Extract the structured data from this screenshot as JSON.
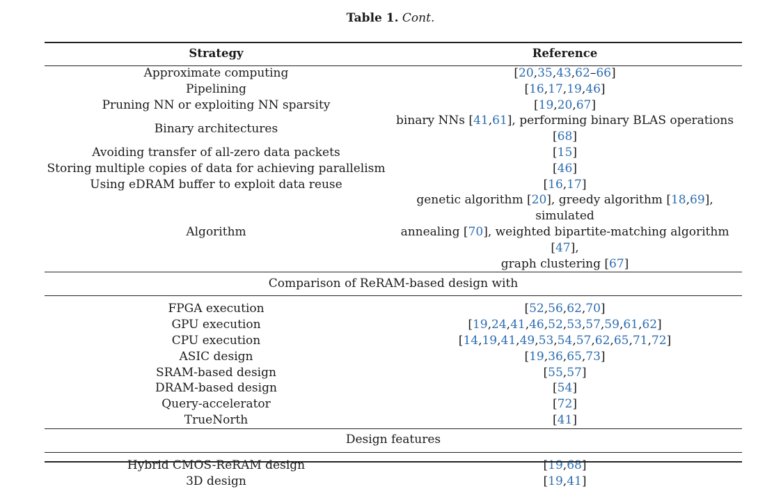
{
  "caption": {
    "label": "Table 1.",
    "continued": "Cont."
  },
  "table": {
    "headers": [
      "Strategy",
      "Reference"
    ],
    "groups": [
      {
        "rows": [
          {
            "strategy": "Approximate computing",
            "reference": [
              {
                "t": "[",
                "l": false
              },
              {
                "t": "20",
                "l": true
              },
              {
                "t": ",",
                "l": false
              },
              {
                "t": "35",
                "l": true
              },
              {
                "t": ",",
                "l": false
              },
              {
                "t": "43",
                "l": true
              },
              {
                "t": ",",
                "l": false
              },
              {
                "t": "62",
                "l": true
              },
              {
                "t": "–",
                "l": false
              },
              {
                "t": "66",
                "l": true
              },
              {
                "t": "]",
                "l": false
              }
            ]
          },
          {
            "strategy": "Pipelining",
            "reference": [
              {
                "t": "[",
                "l": false
              },
              {
                "t": "16",
                "l": true
              },
              {
                "t": ",",
                "l": false
              },
              {
                "t": "17",
                "l": true
              },
              {
                "t": ",",
                "l": false
              },
              {
                "t": "19",
                "l": true
              },
              {
                "t": ",",
                "l": false
              },
              {
                "t": "46",
                "l": true
              },
              {
                "t": "]",
                "l": false
              }
            ]
          },
          {
            "strategy": "Pruning NN or exploiting NN sparsity",
            "reference": [
              {
                "t": "[",
                "l": false
              },
              {
                "t": "19",
                "l": true
              },
              {
                "t": ",",
                "l": false
              },
              {
                "t": "20",
                "l": true
              },
              {
                "t": ",",
                "l": false
              },
              {
                "t": "67",
                "l": true
              },
              {
                "t": "]",
                "l": false
              }
            ]
          },
          {
            "strategy": "Binary architectures",
            "reference": [
              {
                "t": "binary NNs [",
                "l": false
              },
              {
                "t": "41",
                "l": true
              },
              {
                "t": ",",
                "l": false
              },
              {
                "t": "61",
                "l": true
              },
              {
                "t": "], performing binary BLAS operations [",
                "l": false
              },
              {
                "t": "68",
                "l": true
              },
              {
                "t": "]",
                "l": false
              }
            ]
          },
          {
            "strategy": "Avoiding transfer of all-zero data packets",
            "reference": [
              {
                "t": "[",
                "l": false
              },
              {
                "t": "15",
                "l": true
              },
              {
                "t": "]",
                "l": false
              }
            ]
          },
          {
            "strategy": "Storing multiple copies of data for achieving parallelism",
            "reference": [
              {
                "t": "[",
                "l": false
              },
              {
                "t": "46",
                "l": true
              },
              {
                "t": "]",
                "l": false
              }
            ]
          },
          {
            "strategy": "Using eDRAM buffer to exploit data reuse",
            "reference": [
              {
                "t": "[",
                "l": false
              },
              {
                "t": "16",
                "l": true
              },
              {
                "t": ",",
                "l": false
              },
              {
                "t": "17",
                "l": true
              },
              {
                "t": "]",
                "l": false
              }
            ]
          },
          {
            "strategy": "Algorithm",
            "reference_lines": [
              [
                {
                  "t": "genetic algorithm [",
                  "l": false
                },
                {
                  "t": "20",
                  "l": true
                },
                {
                  "t": "], greedy algorithm [",
                  "l": false
                },
                {
                  "t": "18",
                  "l": true
                },
                {
                  "t": ",",
                  "l": false
                },
                {
                  "t": "69",
                  "l": true
                },
                {
                  "t": "], simulated",
                  "l": false
                }
              ],
              [
                {
                  "t": "annealing [",
                  "l": false
                },
                {
                  "t": "70",
                  "l": true
                },
                {
                  "t": "], weighted bipartite-matching algorithm [",
                  "l": false
                },
                {
                  "t": "47",
                  "l": true
                },
                {
                  "t": "],",
                  "l": false
                }
              ],
              [
                {
                  "t": "graph clustering [",
                  "l": false
                },
                {
                  "t": "67",
                  "l": true
                },
                {
                  "t": "]",
                  "l": false
                }
              ]
            ]
          }
        ]
      },
      {
        "title": "Comparison of ReRAM-based design with",
        "rows": [
          {
            "strategy": "FPGA execution",
            "reference": [
              {
                "t": "[",
                "l": false
              },
              {
                "t": "52",
                "l": true
              },
              {
                "t": ",",
                "l": false
              },
              {
                "t": "56",
                "l": true
              },
              {
                "t": ",",
                "l": false
              },
              {
                "t": "62",
                "l": true
              },
              {
                "t": ",",
                "l": false
              },
              {
                "t": "70",
                "l": true
              },
              {
                "t": "]",
                "l": false
              }
            ]
          },
          {
            "strategy": "GPU execution",
            "reference": [
              {
                "t": "[",
                "l": false
              },
              {
                "t": "19",
                "l": true
              },
              {
                "t": ",",
                "l": false
              },
              {
                "t": "24",
                "l": true
              },
              {
                "t": ",",
                "l": false
              },
              {
                "t": "41",
                "l": true
              },
              {
                "t": ",",
                "l": false
              },
              {
                "t": "46",
                "l": true
              },
              {
                "t": ",",
                "l": false
              },
              {
                "t": "52",
                "l": true
              },
              {
                "t": ",",
                "l": false
              },
              {
                "t": "53",
                "l": true
              },
              {
                "t": ",",
                "l": false
              },
              {
                "t": "57",
                "l": true
              },
              {
                "t": ",",
                "l": false
              },
              {
                "t": "59",
                "l": true
              },
              {
                "t": ",",
                "l": false
              },
              {
                "t": "61",
                "l": true
              },
              {
                "t": ",",
                "l": false
              },
              {
                "t": "62",
                "l": true
              },
              {
                "t": "]",
                "l": false
              }
            ]
          },
          {
            "strategy": "CPU execution",
            "reference": [
              {
                "t": "[",
                "l": false
              },
              {
                "t": "14",
                "l": true
              },
              {
                "t": ",",
                "l": false
              },
              {
                "t": "19",
                "l": true
              },
              {
                "t": ",",
                "l": false
              },
              {
                "t": "41",
                "l": true
              },
              {
                "t": ",",
                "l": false
              },
              {
                "t": "49",
                "l": true
              },
              {
                "t": ",",
                "l": false
              },
              {
                "t": "53",
                "l": true
              },
              {
                "t": ",",
                "l": false
              },
              {
                "t": "54",
                "l": true
              },
              {
                "t": ",",
                "l": false
              },
              {
                "t": "57",
                "l": true
              },
              {
                "t": ",",
                "l": false
              },
              {
                "t": "62",
                "l": true
              },
              {
                "t": ",",
                "l": false
              },
              {
                "t": "65",
                "l": true
              },
              {
                "t": ",",
                "l": false
              },
              {
                "t": "71",
                "l": true
              },
              {
                "t": ",",
                "l": false
              },
              {
                "t": "72",
                "l": true
              },
              {
                "t": "]",
                "l": false
              }
            ]
          },
          {
            "strategy": "ASIC design",
            "reference": [
              {
                "t": "[",
                "l": false
              },
              {
                "t": "19",
                "l": true
              },
              {
                "t": ",",
                "l": false
              },
              {
                "t": "36",
                "l": true
              },
              {
                "t": ",",
                "l": false
              },
              {
                "t": "65",
                "l": true
              },
              {
                "t": ",",
                "l": false
              },
              {
                "t": "73",
                "l": true
              },
              {
                "t": "]",
                "l": false
              }
            ]
          },
          {
            "strategy": "SRAM-based design",
            "reference": [
              {
                "t": "[",
                "l": false
              },
              {
                "t": "55",
                "l": true
              },
              {
                "t": ",",
                "l": false
              },
              {
                "t": "57",
                "l": true
              },
              {
                "t": "]",
                "l": false
              }
            ]
          },
          {
            "strategy": "DRAM-based design",
            "reference": [
              {
                "t": "[",
                "l": false
              },
              {
                "t": "54",
                "l": true
              },
              {
                "t": "]",
                "l": false
              }
            ]
          },
          {
            "strategy": "Query-accelerator",
            "reference": [
              {
                "t": "[",
                "l": false
              },
              {
                "t": "72",
                "l": true
              },
              {
                "t": "]",
                "l": false
              }
            ]
          },
          {
            "strategy": "TrueNorth",
            "reference": [
              {
                "t": "[",
                "l": false
              },
              {
                "t": "41",
                "l": true
              },
              {
                "t": "]",
                "l": false
              }
            ]
          }
        ]
      },
      {
        "title": "Design features",
        "rows": [
          {
            "strategy": "Hybrid CMOS-ReRAM design",
            "reference": [
              {
                "t": "[",
                "l": false
              },
              {
                "t": "19",
                "l": true
              },
              {
                "t": ",",
                "l": false
              },
              {
                "t": "68",
                "l": true
              },
              {
                "t": "]",
                "l": false
              }
            ]
          },
          {
            "strategy": "3D design",
            "reference": [
              {
                "t": "[",
                "l": false
              },
              {
                "t": "19",
                "l": true
              },
              {
                "t": ",",
                "l": false
              },
              {
                "t": "41",
                "l": true
              },
              {
                "t": "]",
                "l": false
              }
            ]
          }
        ]
      }
    ]
  },
  "colors": {
    "link": "#2b6cb0",
    "text": "#1a1a1a",
    "rule": "#222222"
  }
}
